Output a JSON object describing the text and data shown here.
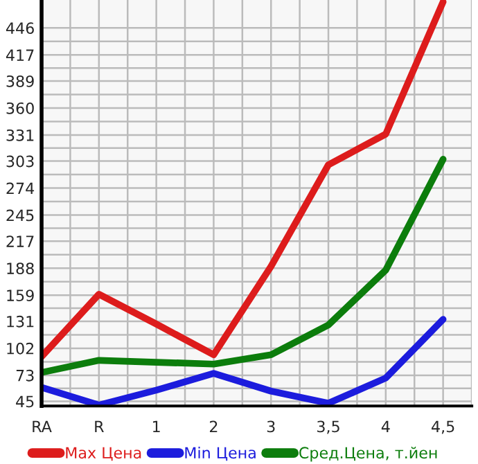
{
  "chart_data": {
    "type": "line",
    "categories": [
      "RA",
      "R",
      "1",
      "2",
      "3",
      "3,5",
      "4",
      "4,5"
    ],
    "series": [
      {
        "name": "Max Цена",
        "color": "#dd1c1c",
        "values": [
          93,
          160,
          128,
          95,
          190,
          299,
          332,
          474
        ]
      },
      {
        "name": "Min Цена",
        "color": "#1c1cdd",
        "values": [
          60,
          41,
          57,
          75,
          56,
          43,
          70,
          133
        ]
      },
      {
        "name": "Сред.Цена, т.йен",
        "color": "#0c7d0c",
        "values": [
          76,
          89,
          87,
          85,
          95,
          127,
          186,
          305
        ]
      }
    ],
    "ylim": [
      40,
      476
    ],
    "yticks": [
      45,
      73,
      102,
      131,
      159,
      188,
      217,
      245,
      274,
      303,
      331,
      360,
      389,
      417,
      446
    ],
    "grid": true,
    "legend": "bottom",
    "marker": "none",
    "line_style": "solid"
  }
}
